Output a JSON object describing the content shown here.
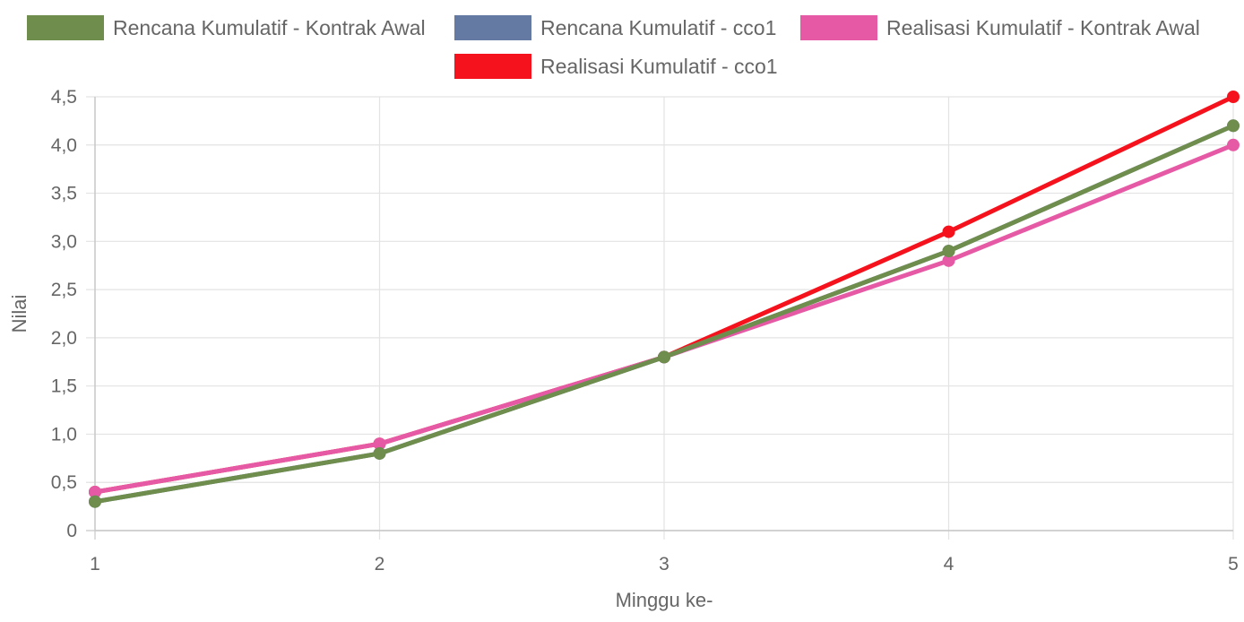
{
  "chart_data": {
    "type": "line",
    "xlabel": "Minggu ke-",
    "ylabel": "Nilai",
    "categories": [
      "1",
      "2",
      "3",
      "4",
      "5"
    ],
    "y_ticks": [
      "0",
      "0,5",
      "1,0",
      "1,5",
      "2,0",
      "2,5",
      "3,0",
      "3,5",
      "4,0",
      "4,5"
    ],
    "ylim": [
      0,
      4.5
    ],
    "grid": true,
    "legend_position": "top",
    "series": [
      {
        "name": "Rencana Kumulatif - Kontrak Awal",
        "color": "#6f8d4c",
        "values": [
          0.3,
          0.8,
          1.8,
          2.9,
          4.2
        ]
      },
      {
        "name": "Rencana Kumulatif - cco1",
        "color": "#647aa3",
        "values": [
          0.3,
          0.8,
          1.8,
          2.9,
          4.2
        ]
      },
      {
        "name": "Realisasi Kumulatif - Kontrak Awal",
        "color": "#e65aa5",
        "values": [
          0.4,
          0.9,
          1.8,
          2.8,
          4.0
        ]
      },
      {
        "name": "Realisasi Kumulatif - cco1",
        "color": "#f5121c",
        "values": [
          0.4,
          0.9,
          1.8,
          3.1,
          4.5
        ]
      }
    ]
  }
}
